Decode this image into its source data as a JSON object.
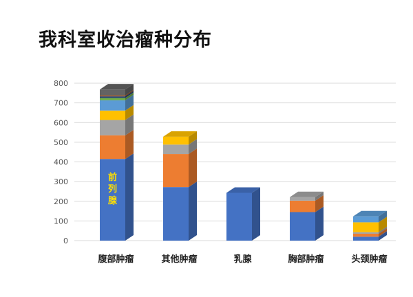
{
  "title": "我科室收治瘤种分布",
  "chart_data": {
    "type": "bar",
    "stacked": true,
    "style": "3d",
    "title": "我科室收治瘤种分布",
    "xlabel": "",
    "ylabel": "",
    "ylim": [
      0,
      800
    ],
    "yticks": [
      0,
      100,
      200,
      300,
      400,
      500,
      600,
      700,
      800
    ],
    "grid": true,
    "legend": "none",
    "categories": [
      "腹部肿瘤",
      "其他肿瘤",
      "乳腺",
      "胸部肿瘤",
      "头颈肿瘤"
    ],
    "series": [
      {
        "color": "#4472c4",
        "values": [
          415,
          272,
          243,
          145,
          20
        ]
      },
      {
        "color": "#ed7d31",
        "values": [
          120,
          168,
          0,
          58,
          15
        ]
      },
      {
        "color": "#a5a5a5",
        "values": [
          78,
          48,
          0,
          18,
          8
        ]
      },
      {
        "color": "#ffc000",
        "values": [
          48,
          40,
          0,
          0,
          50
        ]
      },
      {
        "color": "#5b9bd5",
        "values": [
          52,
          0,
          0,
          0,
          30
        ]
      },
      {
        "color": "#70ad47",
        "values": [
          12,
          0,
          0,
          0,
          0
        ]
      },
      {
        "color": "#264478",
        "values": [
          8,
          0,
          0,
          0,
          0
        ]
      },
      {
        "color": "#9e480e",
        "values": [
          5,
          0,
          0,
          0,
          0
        ]
      },
      {
        "color": "#636363",
        "values": [
          30,
          0,
          0,
          0,
          0
        ]
      }
    ],
    "annotations": [
      {
        "category": "腹部肿瘤",
        "text": "前\n列\n腺"
      }
    ]
  }
}
